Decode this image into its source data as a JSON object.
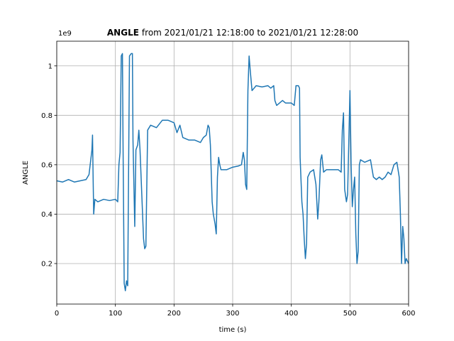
{
  "chart_data": {
    "type": "line",
    "title_bold": "ANGLE",
    "title": "from 2021/01/21 12:18:00 to 2021/01/21 12:28:00",
    "offset_label": "1e9",
    "xlabel": "time (s)",
    "ylabel": "ANGLE",
    "color": "#1f77b4",
    "grid": true,
    "xlim": [
      0,
      600
    ],
    "xticks": [
      0,
      100,
      200,
      300,
      400,
      500,
      600
    ],
    "ylim": [
      0.036,
      1.1
    ],
    "yticks": [
      0.2,
      0.4,
      0.6,
      0.8,
      1.0
    ],
    "x": [
      0,
      10,
      20,
      30,
      40,
      50,
      55,
      58,
      60,
      61,
      62,
      63,
      65,
      70,
      80,
      90,
      100,
      104,
      106,
      108,
      110,
      112,
      113,
      115,
      117,
      119,
      121,
      124,
      127,
      129,
      130,
      133,
      135,
      138,
      140,
      142,
      148,
      150,
      152,
      155,
      160,
      170,
      180,
      190,
      200,
      205,
      210,
      215,
      225,
      235,
      245,
      250,
      255,
      258,
      260,
      262,
      265,
      267,
      270,
      272,
      274,
      276,
      278,
      280,
      290,
      300,
      310,
      315,
      318,
      320,
      322,
      324,
      326,
      328,
      330,
      333,
      340,
      350,
      360,
      365,
      370,
      372,
      375,
      380,
      385,
      390,
      400,
      405,
      408,
      412,
      414,
      415,
      418,
      420,
      422,
      424,
      426,
      428,
      432,
      438,
      442,
      445,
      447,
      450,
      452,
      455,
      460,
      470,
      480,
      485,
      487,
      489,
      491,
      494,
      496,
      500,
      502,
      504,
      506,
      508,
      510,
      512,
      514,
      516,
      518,
      525,
      535,
      540,
      545,
      550,
      555,
      560,
      565,
      570,
      575,
      580,
      584,
      586,
      588,
      590,
      592,
      594,
      596,
      600
    ],
    "values": [
      0.535,
      0.53,
      0.54,
      0.53,
      0.535,
      0.54,
      0.56,
      0.62,
      0.66,
      0.72,
      0.55,
      0.4,
      0.46,
      0.45,
      0.46,
      0.455,
      0.46,
      0.45,
      0.6,
      0.65,
      1.04,
      1.05,
      0.7,
      0.12,
      0.09,
      0.13,
      0.11,
      1.04,
      1.05,
      1.05,
      0.7,
      0.35,
      0.66,
      0.68,
      0.74,
      0.66,
      0.3,
      0.26,
      0.27,
      0.74,
      0.76,
      0.75,
      0.78,
      0.78,
      0.77,
      0.73,
      0.76,
      0.71,
      0.7,
      0.7,
      0.69,
      0.71,
      0.72,
      0.76,
      0.75,
      0.68,
      0.45,
      0.4,
      0.36,
      0.32,
      0.55,
      0.63,
      0.6,
      0.58,
      0.58,
      0.59,
      0.595,
      0.6,
      0.65,
      0.62,
      0.52,
      0.5,
      0.9,
      1.04,
      0.98,
      0.9,
      0.92,
      0.915,
      0.92,
      0.91,
      0.92,
      0.86,
      0.84,
      0.85,
      0.86,
      0.85,
      0.85,
      0.84,
      0.92,
      0.92,
      0.91,
      0.63,
      0.45,
      0.4,
      0.3,
      0.22,
      0.28,
      0.55,
      0.57,
      0.58,
      0.52,
      0.38,
      0.45,
      0.62,
      0.64,
      0.57,
      0.58,
      0.58,
      0.58,
      0.57,
      0.74,
      0.81,
      0.5,
      0.45,
      0.48,
      0.9,
      0.6,
      0.43,
      0.5,
      0.55,
      0.32,
      0.2,
      0.25,
      0.6,
      0.62,
      0.61,
      0.62,
      0.55,
      0.54,
      0.55,
      0.54,
      0.55,
      0.57,
      0.56,
      0.6,
      0.61,
      0.55,
      0.4,
      0.2,
      0.35,
      0.3,
      0.2,
      0.22,
      0.2
    ]
  }
}
